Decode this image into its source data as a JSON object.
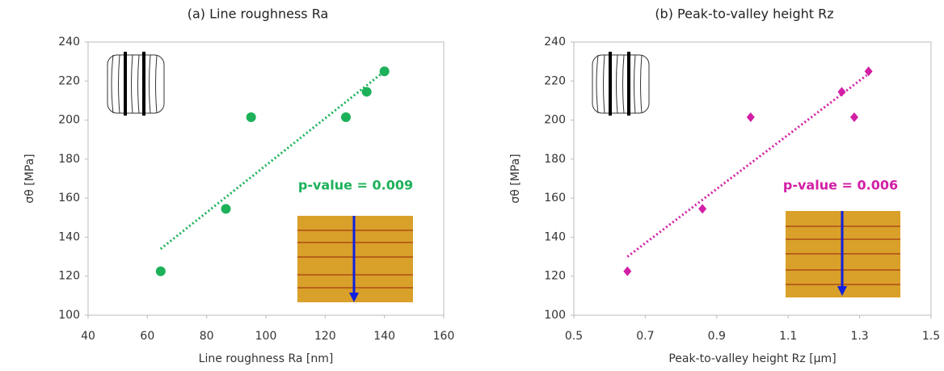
{
  "chart_data": [
    {
      "type": "scatter",
      "title": "(a) Line roughness Ra",
      "xlabel": "Line roughness Ra [nm]",
      "ylabel": "σθ [MPa]",
      "x": [
        64.5,
        86.5,
        95,
        127,
        134,
        140
      ],
      "y": [
        122.5,
        154.5,
        201.5,
        201.5,
        214.5,
        225
      ],
      "color": "#1db15a",
      "marker": "circle",
      "trendline": {
        "x": [
          64.5,
          140
        ],
        "y": [
          134,
          225
        ]
      },
      "annotation": "p-value = 0.009",
      "xlim": [
        40,
        160
      ],
      "xticks": [
        40,
        60,
        80,
        100,
        120,
        140,
        160
      ],
      "ylim": [
        100,
        240
      ],
      "yticks": [
        100,
        120,
        140,
        160,
        180,
        200,
        220,
        240
      ],
      "grid": false
    },
    {
      "type": "scatter",
      "title": "(b) Peak-to-valley height Rz",
      "xlabel": "Peak-to-valley height Rz [µm]",
      "ylabel": "σθ [MPa]",
      "x": [
        0.65,
        0.86,
        0.995,
        1.25,
        1.285,
        1.325
      ],
      "y": [
        122.5,
        154.5,
        201.5,
        214.5,
        201.5,
        225
      ],
      "color": "#d21fa5",
      "marker": "diamond",
      "trendline": {
        "x": [
          0.65,
          1.32
        ],
        "y": [
          130,
          223
        ]
      },
      "annotation": "p-value = 0.006",
      "xlim": [
        0.5,
        1.5
      ],
      "xticks": [
        0.5,
        0.7,
        0.9,
        1.1,
        1.3,
        1.5
      ],
      "ylim": [
        100,
        240
      ],
      "yticks": [
        100,
        120,
        140,
        160,
        180,
        200,
        220,
        240
      ],
      "grid": false
    }
  ]
}
